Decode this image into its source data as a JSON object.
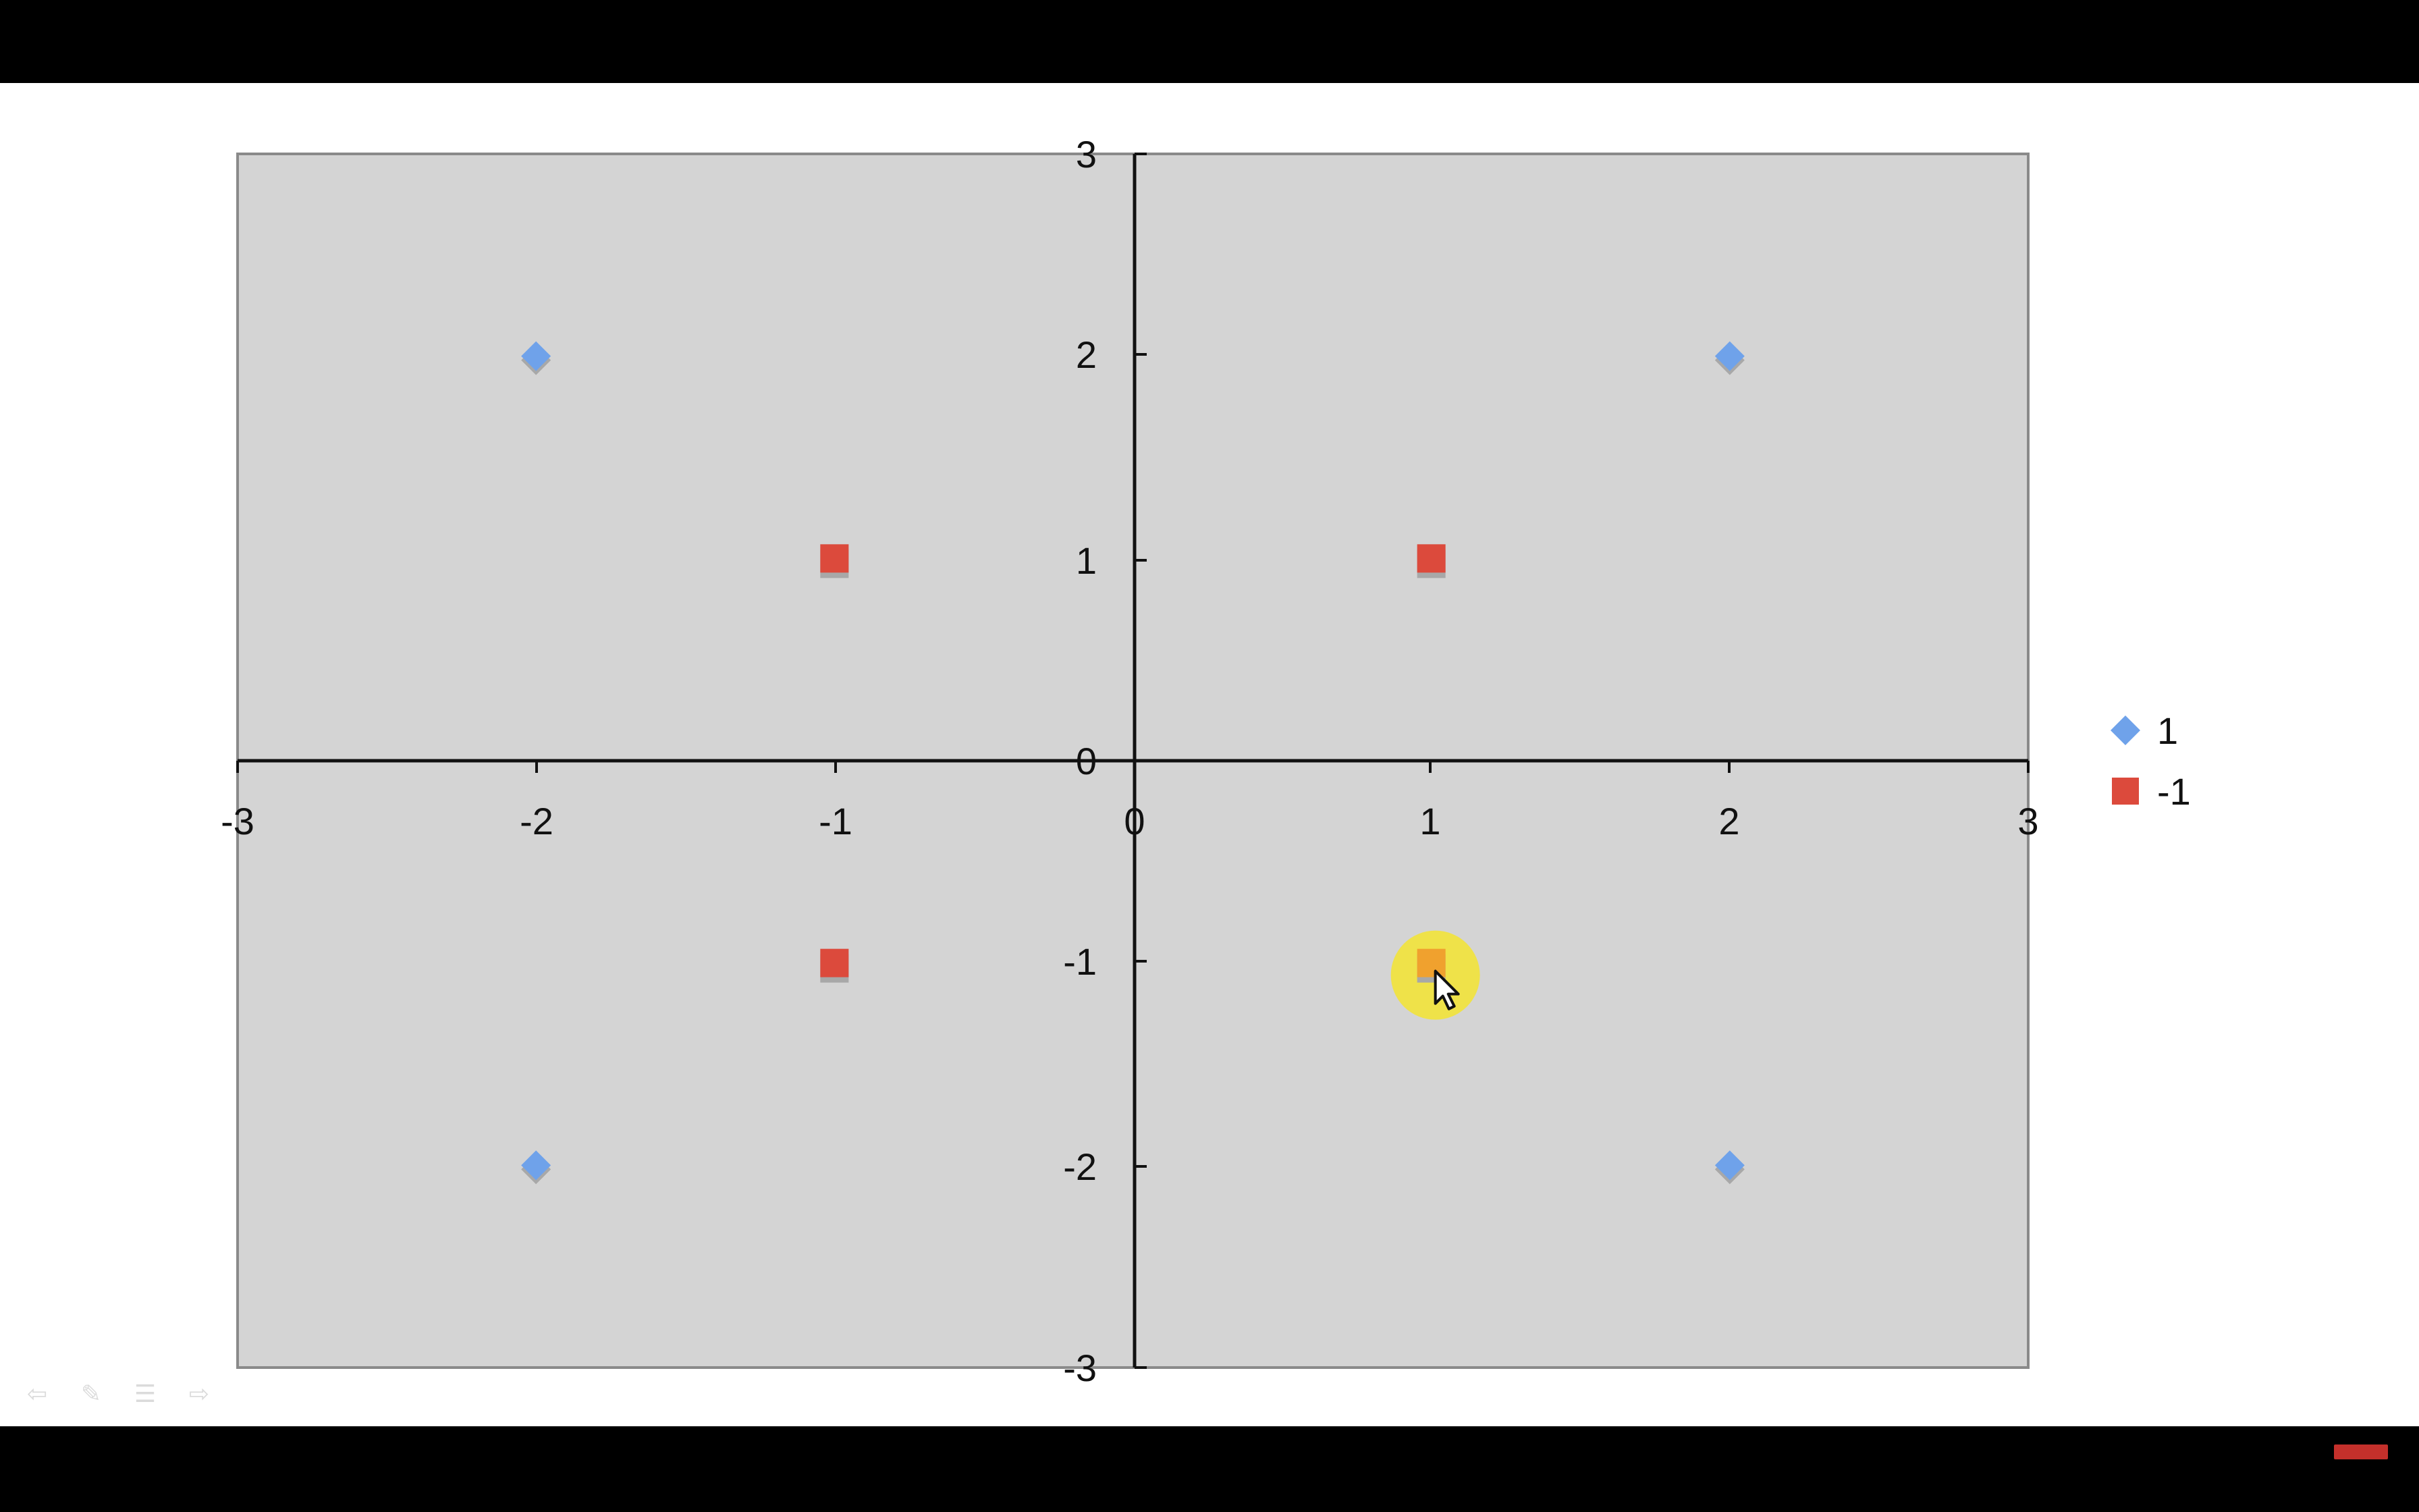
{
  "colors": {
    "plot_background": "#d4d4d4",
    "series_pos": "#6fa2ea",
    "series_neg": "#dc4a3c",
    "cursor_highlight": "#f2e33a",
    "cursor_point": "#f0a12e"
  },
  "icons": [
    "back-icon",
    "pen-icon",
    "menu-icon",
    "forward-icon",
    "subscribe-icon"
  ],
  "chart_data": {
    "type": "scatter",
    "xlim": [
      -3,
      3
    ],
    "ylim": [
      -3,
      3
    ],
    "x_ticks": [
      "-3",
      "-2",
      "-1",
      "0",
      "1",
      "2",
      "3"
    ],
    "y_ticks": [
      "3",
      "2",
      "1",
      "0",
      "-1",
      "-2",
      "-3"
    ],
    "grid": false,
    "legend_position": "right",
    "series": [
      {
        "name": "1",
        "marker": "diamond",
        "points": [
          {
            "x": -2,
            "y": 2
          },
          {
            "x": 2,
            "y": 2
          },
          {
            "x": -2,
            "y": -2
          },
          {
            "x": 2,
            "y": -2
          }
        ]
      },
      {
        "name": "-1",
        "marker": "square",
        "points": [
          {
            "x": -1,
            "y": 1
          },
          {
            "x": 1,
            "y": 1
          },
          {
            "x": -1,
            "y": -1
          },
          {
            "x": 1,
            "y": -1
          }
        ]
      }
    ],
    "highlighted_point": {
      "x": 1,
      "y": -1
    }
  }
}
